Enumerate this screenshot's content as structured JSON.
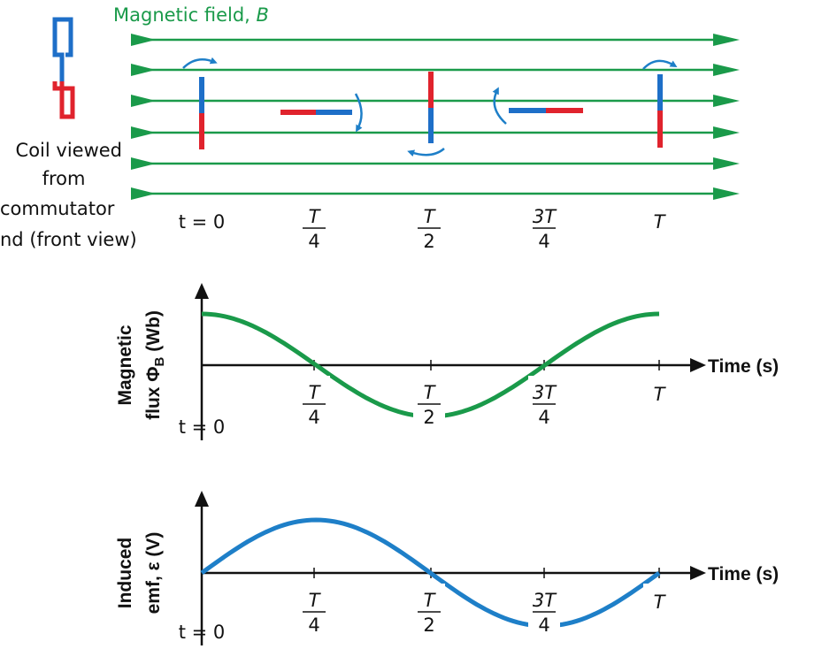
{
  "top": {
    "title_prefix": "Magnetic field, ",
    "title_symbol": "B",
    "coil_caption": [
      "Coil viewed",
      "from",
      "commutator",
      "nd (front view)"
    ],
    "times": [
      {
        "label": "t = 0"
      },
      {
        "num": "T",
        "den": "4"
      },
      {
        "num": "T",
        "den": "2"
      },
      {
        "num": "3T",
        "den": "4"
      },
      {
        "label": "T"
      }
    ]
  },
  "flux_graph": {
    "ylabel": [
      "Magnetic",
      "flux Φ",
      "B",
      " (Wb)"
    ],
    "xlabel": "Time (s)",
    "times": [
      {
        "label": "t = 0"
      },
      {
        "num": "T",
        "den": "4"
      },
      {
        "num": "T",
        "den": "2"
      },
      {
        "num": "3T",
        "den": "4"
      },
      {
        "label": "T"
      }
    ]
  },
  "emf_graph": {
    "ylabel": [
      "Induced",
      "emf, ε (V)"
    ],
    "xlabel": "Time (s)",
    "times": [
      {
        "label": "t = 0"
      },
      {
        "num": "T",
        "den": "4"
      },
      {
        "num": "T",
        "den": "2"
      },
      {
        "num": "3T",
        "den": "4"
      },
      {
        "label": "T"
      }
    ]
  }
}
